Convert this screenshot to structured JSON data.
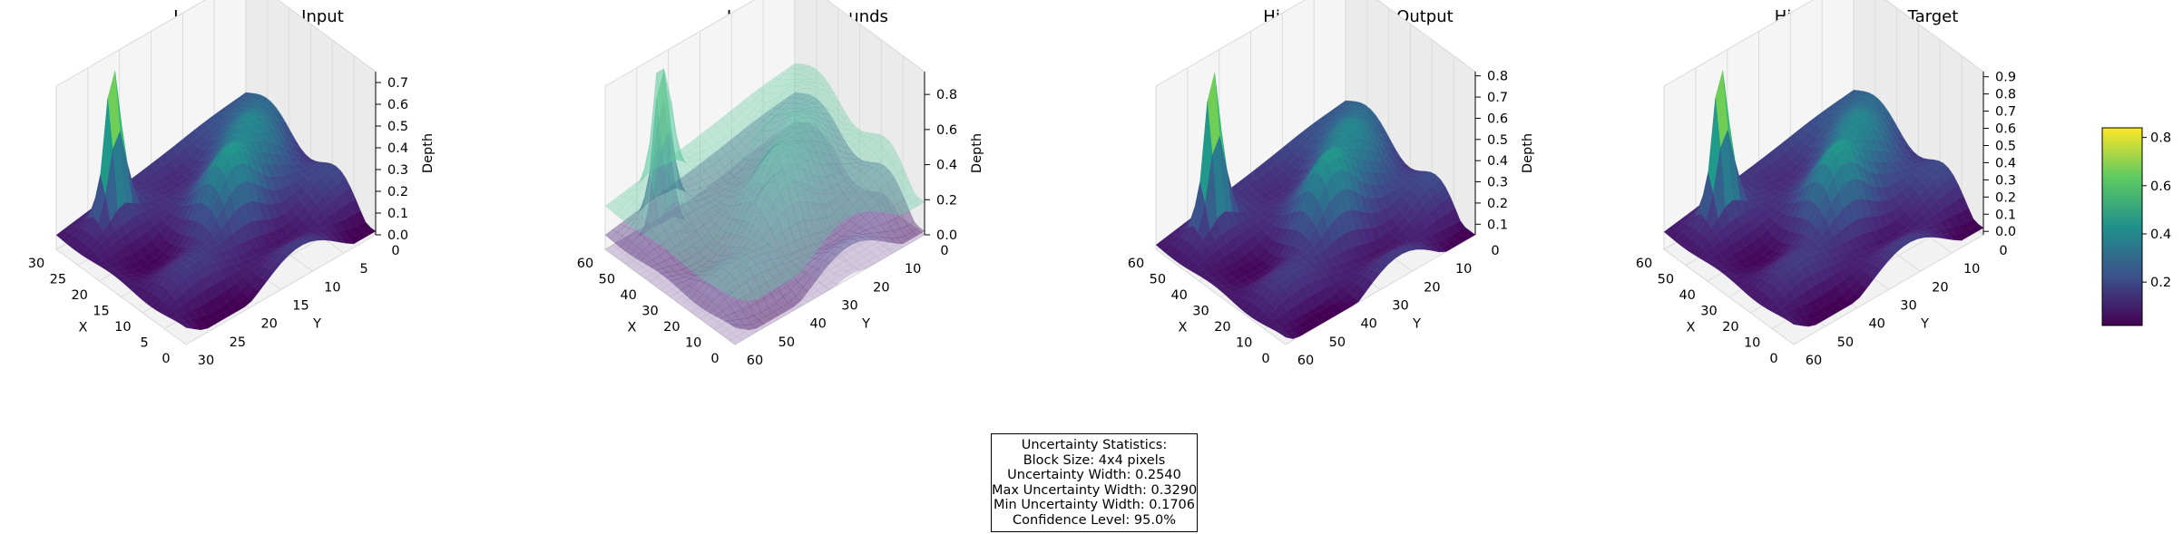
{
  "chart_data": [
    {
      "type": "surface",
      "title": "Low Resolution Input",
      "xlabel": "X",
      "ylabel": "Y",
      "zlabel": "Depth",
      "x_range": [
        0,
        31
      ],
      "y_range": [
        0,
        31
      ],
      "z_range": [
        0,
        0.75
      ],
      "x_ticks": [
        "30",
        "25",
        "20",
        "15",
        "10",
        "5",
        "0"
      ],
      "y_ticks": [
        "30",
        "25",
        "20",
        "15",
        "10",
        "5",
        "0"
      ],
      "z_ticks": [
        "0.0",
        "0.1",
        "0.2",
        "0.3",
        "0.4",
        "0.5",
        "0.6",
        "0.7"
      ],
      "colormap": "viridis",
      "surface_peak_depth": 0.74
    },
    {
      "type": "surface",
      "title": "Uncertainty Bounds",
      "xlabel": "X",
      "ylabel": "Y",
      "zlabel": "Depth",
      "x_range": [
        0,
        63
      ],
      "y_range": [
        0,
        63
      ],
      "z_range": [
        0,
        0.93
      ],
      "x_ticks": [
        "60",
        "50",
        "40",
        "30",
        "20",
        "10",
        "0"
      ],
      "y_ticks": [
        "60",
        "50",
        "40",
        "30",
        "20",
        "10",
        "0"
      ],
      "z_ticks": [
        "0.0",
        "0.2",
        "0.4",
        "0.6",
        "0.8"
      ],
      "colormap": "viridis",
      "layers": [
        "lower bound",
        "output",
        "upper bound"
      ],
      "surface_peak_depth": 0.92
    },
    {
      "type": "surface",
      "title": "High Resolution Output",
      "xlabel": "X",
      "ylabel": "Y",
      "zlabel": "Depth",
      "x_range": [
        0,
        63
      ],
      "y_range": [
        0,
        63
      ],
      "z_range": [
        0.05,
        0.82
      ],
      "x_ticks": [
        "60",
        "50",
        "40",
        "30",
        "20",
        "10",
        "0"
      ],
      "y_ticks": [
        "60",
        "50",
        "40",
        "30",
        "20",
        "10",
        "0"
      ],
      "z_ticks": [
        "0.1",
        "0.2",
        "0.3",
        "0.4",
        "0.5",
        "0.6",
        "0.7",
        "0.8"
      ],
      "colormap": "viridis",
      "surface_peak_depth": 0.8
    },
    {
      "type": "surface",
      "title": "High Resolution Target",
      "xlabel": "X",
      "ylabel": "Y",
      "zlabel": "",
      "x_range": [
        0,
        63
      ],
      "y_range": [
        0,
        63
      ],
      "z_range": [
        -0.02,
        0.93
      ],
      "x_ticks": [
        "60",
        "50",
        "40",
        "30",
        "20",
        "10",
        "0"
      ],
      "y_ticks": [
        "60",
        "50",
        "40",
        "30",
        "20",
        "10",
        "0"
      ],
      "z_ticks": [
        "0.0",
        "0.1",
        "0.2",
        "0.3",
        "0.4",
        "0.5",
        "0.6",
        "0.7",
        "0.8",
        "0.9"
      ],
      "colormap": "viridis",
      "surface_peak_depth": 0.92,
      "colorbar": {
        "min": 0.02,
        "max": 0.84,
        "ticks": [
          "0.2",
          "0.4",
          "0.6",
          "0.8"
        ]
      }
    }
  ],
  "stats": {
    "lines": [
      "Uncertainty Statistics:",
      "Block Size: 4x4 pixels",
      "Uncertainty Width: 0.2540",
      "Max Uncertainty Width: 0.3290",
      "Min Uncertainty Width: 0.1706",
      "Confidence Level: 95.0%"
    ]
  }
}
